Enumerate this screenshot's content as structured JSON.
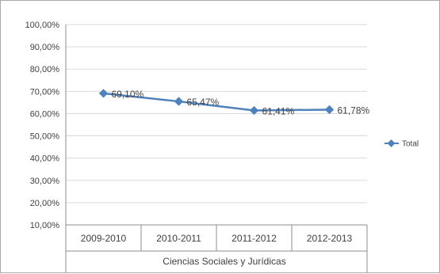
{
  "chart_data": {
    "type": "line",
    "categories": [
      "2009-2010",
      "2010-2011",
      "2011-2012",
      "2012-2013"
    ],
    "group_label": "Ciencias Sociales y Jurídicas",
    "series": [
      {
        "name": "Total",
        "values": [
          69.1,
          65.47,
          61.41,
          61.78
        ],
        "labels": [
          "69,10%",
          "65,47%",
          "61,41%",
          "61,78%"
        ],
        "color": "#4f81bd"
      }
    ],
    "y_ticks": [
      "100,00%",
      "90,00%",
      "80,00%",
      "70,00%",
      "60,00%",
      "50,00%",
      "40,00%",
      "30,00%",
      "20,00%",
      "10,00%"
    ],
    "ylim": [
      10,
      100
    ],
    "grid": true,
    "legend_position": "right",
    "gridline_color": "#d9d9d9"
  }
}
